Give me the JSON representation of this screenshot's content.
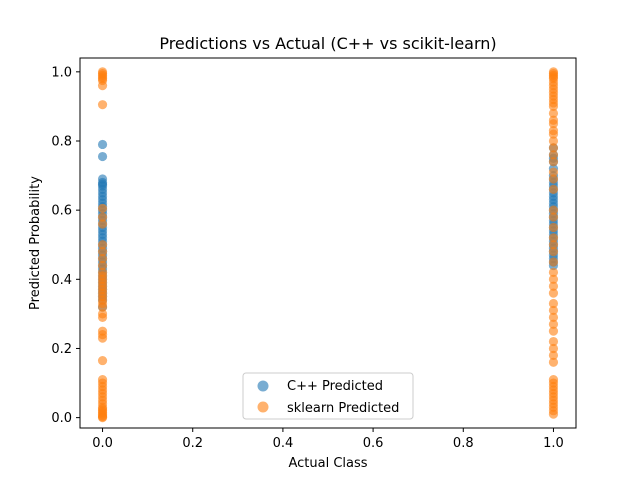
{
  "chart_data": {
    "type": "scatter",
    "title": "Predictions vs Actual (C++ vs scikit-learn)",
    "xlabel": "Actual Class",
    "ylabel": "Predicted Probability",
    "xlim": [
      -0.05,
      1.05
    ],
    "ylim": [
      -0.03,
      1.04
    ],
    "x_ticks": [
      0.0,
      0.2,
      0.4,
      0.6,
      0.8,
      1.0
    ],
    "x_tick_labels": [
      "0.0",
      "0.2",
      "0.4",
      "0.6",
      "0.8",
      "1.0"
    ],
    "y_ticks": [
      0.0,
      0.2,
      0.4,
      0.6,
      0.8,
      1.0
    ],
    "y_tick_labels": [
      "0.0",
      "0.2",
      "0.4",
      "0.6",
      "0.8",
      "1.0"
    ],
    "grid": false,
    "legend_position": "lower-center",
    "series": [
      {
        "name": "C++ Predicted",
        "color": "#1f77b4",
        "x": [
          0,
          0,
          0,
          0,
          0,
          0,
          0,
          0,
          0,
          0,
          0,
          0,
          0,
          0,
          0,
          0,
          0,
          0,
          0,
          0,
          0,
          0,
          0,
          0,
          0,
          0,
          0,
          0,
          0,
          0,
          0,
          0,
          0,
          0,
          0,
          0,
          0,
          0,
          0,
          0,
          1,
          1,
          1,
          1,
          1,
          1,
          1,
          1,
          1,
          1,
          1,
          1,
          1,
          1,
          1,
          1,
          1,
          1,
          1,
          1,
          1,
          1,
          1,
          1,
          1,
          1,
          1,
          1,
          1,
          1,
          1,
          1
        ],
        "y": [
          0.79,
          0.755,
          0.69,
          0.68,
          0.675,
          0.67,
          0.66,
          0.65,
          0.64,
          0.63,
          0.62,
          0.61,
          0.6,
          0.59,
          0.58,
          0.57,
          0.56,
          0.55,
          0.54,
          0.53,
          0.52,
          0.51,
          0.5,
          0.49,
          0.48,
          0.47,
          0.46,
          0.45,
          0.44,
          0.43,
          0.42,
          0.41,
          0.4,
          0.39,
          0.38,
          0.37,
          0.36,
          0.35,
          0.34,
          0.32,
          0.78,
          0.76,
          0.75,
          0.74,
          0.72,
          0.7,
          0.69,
          0.68,
          0.67,
          0.66,
          0.65,
          0.64,
          0.63,
          0.62,
          0.61,
          0.6,
          0.59,
          0.58,
          0.57,
          0.56,
          0.55,
          0.54,
          0.53,
          0.52,
          0.51,
          0.5,
          0.49,
          0.48,
          0.47,
          0.46,
          0.45,
          0.44
        ]
      },
      {
        "name": "sklearn Predicted",
        "color": "#ff7f0e",
        "x": [
          0,
          0,
          0,
          0,
          0,
          0,
          0,
          0,
          0,
          0,
          0,
          0,
          0,
          0,
          0,
          0,
          0,
          0,
          0,
          0,
          0,
          0,
          0,
          0,
          0,
          0,
          0,
          0,
          0,
          0,
          0,
          0,
          0,
          0,
          0,
          0,
          0,
          0,
          0,
          0,
          0,
          0,
          0,
          0,
          0,
          0,
          0,
          0,
          1,
          1,
          1,
          1,
          1,
          1,
          1,
          1,
          1,
          1,
          1,
          1,
          1,
          1,
          1,
          1,
          1,
          1,
          1,
          1,
          1,
          1,
          1,
          1,
          1,
          1,
          1,
          1,
          1,
          1,
          1,
          1,
          1,
          1,
          1,
          1,
          1,
          1,
          1,
          1,
          1,
          1,
          1,
          1,
          1,
          1,
          1,
          1,
          1,
          1,
          1,
          1,
          1,
          1,
          1,
          1
        ],
        "y": [
          1.0,
          0.995,
          0.99,
          0.985,
          0.98,
          0.975,
          0.96,
          0.905,
          0.605,
          0.58,
          0.56,
          0.5,
          0.48,
          0.46,
          0.44,
          0.42,
          0.41,
          0.4,
          0.39,
          0.38,
          0.37,
          0.36,
          0.35,
          0.34,
          0.33,
          0.32,
          0.3,
          0.29,
          0.25,
          0.24,
          0.23,
          0.165,
          0.11,
          0.1,
          0.09,
          0.08,
          0.07,
          0.06,
          0.05,
          0.04,
          0.03,
          0.025,
          0.02,
          0.015,
          0.01,
          0.005,
          0.002,
          0.0,
          1.0,
          0.995,
          0.99,
          0.985,
          0.98,
          0.97,
          0.96,
          0.95,
          0.94,
          0.93,
          0.92,
          0.91,
          0.9,
          0.88,
          0.86,
          0.85,
          0.83,
          0.82,
          0.8,
          0.78,
          0.76,
          0.74,
          0.71,
          0.69,
          0.66,
          0.6,
          0.58,
          0.55,
          0.52,
          0.5,
          0.48,
          0.45,
          0.42,
          0.4,
          0.38,
          0.36,
          0.33,
          0.31,
          0.29,
          0.27,
          0.25,
          0.22,
          0.2,
          0.18,
          0.16,
          0.11,
          0.1,
          0.09,
          0.08,
          0.07,
          0.06,
          0.05,
          0.04,
          0.03,
          0.02,
          0.01
        ]
      }
    ]
  }
}
